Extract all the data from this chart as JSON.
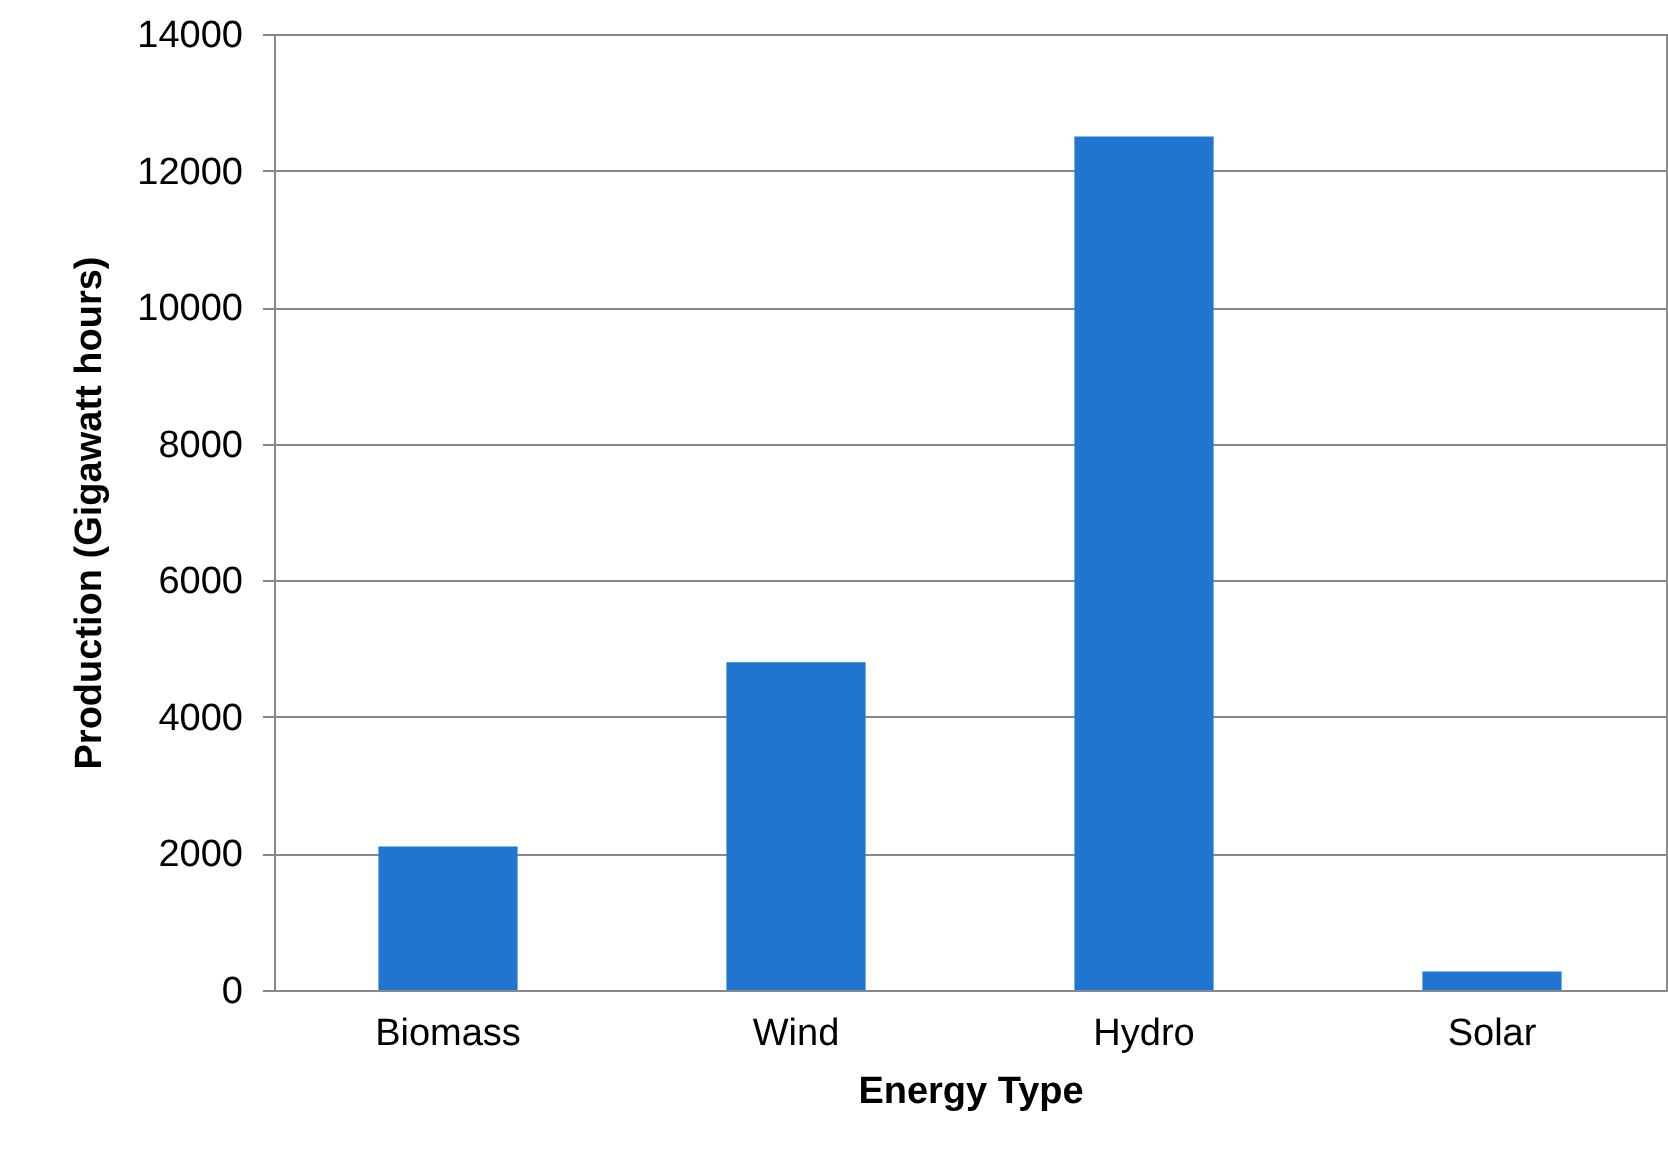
{
  "chart_data": {
    "type": "bar",
    "xlabel": "Energy Type",
    "ylabel": "Production (Gigawatt hours)",
    "categories": [
      "Biomass",
      "Wind",
      "Hydro",
      "Solar"
    ],
    "values": [
      2100,
      4800,
      12500,
      270
    ],
    "color": "#1f75cf",
    "ylim": [
      0,
      14000
    ],
    "yticks": [
      0,
      2000,
      4000,
      6000,
      8000,
      10000,
      12000,
      14000
    ],
    "grid": "y"
  }
}
